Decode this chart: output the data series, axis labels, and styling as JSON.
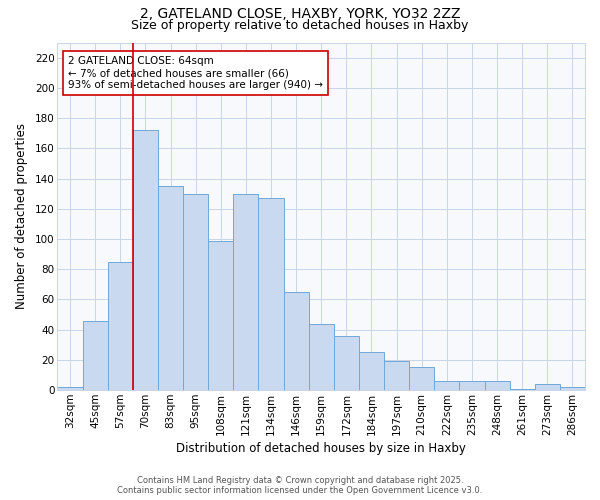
{
  "title_line1": "2, GATELAND CLOSE, HAXBY, YORK, YO32 2ZZ",
  "title_line2": "Size of property relative to detached houses in Haxby",
  "xlabel": "Distribution of detached houses by size in Haxby",
  "ylabel": "Number of detached properties",
  "bar_labels": [
    "32sqm",
    "45sqm",
    "57sqm",
    "70sqm",
    "83sqm",
    "95sqm",
    "108sqm",
    "121sqm",
    "134sqm",
    "146sqm",
    "159sqm",
    "172sqm",
    "184sqm",
    "197sqm",
    "210sqm",
    "222sqm",
    "235sqm",
    "248sqm",
    "261sqm",
    "273sqm",
    "286sqm"
  ],
  "bar_values": [
    2,
    46,
    85,
    172,
    135,
    130,
    99,
    130,
    127,
    65,
    44,
    36,
    25,
    19,
    15,
    6,
    6,
    6,
    1,
    4,
    2
  ],
  "bar_color": "#c9d9ef",
  "bar_edgecolor": "#6fa8d8",
  "vline_x_idx": 3,
  "vline_color": "#cc0000",
  "annotation_text": "2 GATELAND CLOSE: 64sqm\n← 7% of detached houses are smaller (66)\n93% of semi-detached houses are larger (940) →",
  "annotation_box_edgecolor": "#cc0000",
  "annotation_box_facecolor": "#ffffff",
  "ylim": [
    0,
    230
  ],
  "yticks": [
    0,
    20,
    40,
    60,
    80,
    100,
    120,
    140,
    160,
    180,
    200,
    220
  ],
  "background_color": "#ffffff",
  "plot_bg_color": "#f7f9fd",
  "footer_line1": "Contains HM Land Registry data © Crown copyright and database right 2025.",
  "footer_line2": "Contains public sector information licensed under the Open Government Licence v3.0.",
  "grid_color": "#c8d4e8",
  "title_fontsize": 10,
  "subtitle_fontsize": 9,
  "axis_label_fontsize": 8.5,
  "tick_fontsize": 7.5,
  "annotation_fontsize": 7.5
}
